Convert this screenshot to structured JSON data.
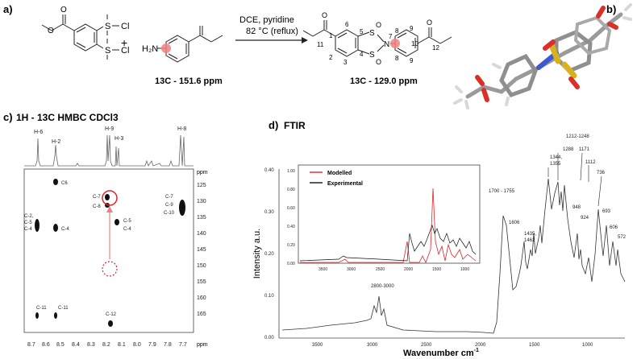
{
  "panels": {
    "a": "a)",
    "b": "b)",
    "c": "c)",
    "d": "d)"
  },
  "scheme": {
    "reactant1_groups": {
      "so2cl_top": "S",
      "so2cl_bottom": "S",
      "cl": "Cl",
      "o": "O"
    },
    "plus": "+",
    "reactant2_group": "H₂N",
    "conditions_line1": "DCE, pyridine",
    "conditions_line2": "82 °C (reflux)",
    "reactant_shift": "13C - 151.6 ppm",
    "product_shift": "13C - 129.0 ppm",
    "product_atoms": {
      "n": "N",
      "s": "S",
      "o": "O"
    },
    "product_numbers": [
      "1",
      "2",
      "3",
      "4",
      "5",
      "6",
      "7",
      "8",
      "8",
      "9",
      "9",
      "10",
      "11",
      "12"
    ]
  },
  "hmbc": {
    "title": "1H - 13C HMBC CDCl3",
    "top_labels": [
      "H-6",
      "H-2",
      "H-9",
      "H-3",
      "H-8"
    ],
    "y_unit": "ppm",
    "x_unit": "ppm",
    "y_ticks": [
      "125",
      "130",
      "135",
      "140",
      "145",
      "150",
      "155",
      "160",
      "165"
    ],
    "x_ticks": [
      "8.7",
      "8.6",
      "8.5",
      "8.4",
      "8.3",
      "8.2",
      "8.1",
      "8.0",
      "7.9",
      "7.8",
      "7.7"
    ],
    "cross_peaks": [
      "C6",
      "C-7",
      "C-8",
      "C-5",
      "C-4",
      "C-2,",
      "C-5",
      "C-4",
      "C-4",
      "C-7",
      "C-9",
      "C-10",
      "C-11",
      "C-11",
      "C-12"
    ]
  },
  "ftir": {
    "title": "FTIR",
    "ylabel": "Intensity a.u.",
    "xlabel": "Wavenumber cm",
    "xlabel_sup": "-1",
    "y_ticks": [
      "0.40",
      "0.30",
      "0.20",
      "0.10",
      "0.00"
    ],
    "x_ticks": [
      "3500",
      "3000",
      "2500",
      "2000",
      "1500",
      "1000"
    ],
    "peak_labels": [
      "1212-1248",
      "1288",
      "1344,",
      "1355",
      "1171",
      "1112",
      "1700 - 1755",
      "1606",
      "1435,",
      "1462",
      "948",
      "924",
      "736",
      "693",
      "606",
      "572",
      "2800-3000"
    ],
    "inset": {
      "legend": [
        "Modelled",
        "Experimental"
      ],
      "y_ticks": [
        "1.00",
        "0.80",
        "0.60",
        "0.40",
        "0.20",
        "0.00"
      ],
      "x_ticks": [
        "3500",
        "3000",
        "2500",
        "2000",
        "1500",
        "1000"
      ]
    }
  },
  "colors": {
    "modelled": "#e0242a",
    "experimental": "#111111",
    "highlight": "#f08080"
  }
}
